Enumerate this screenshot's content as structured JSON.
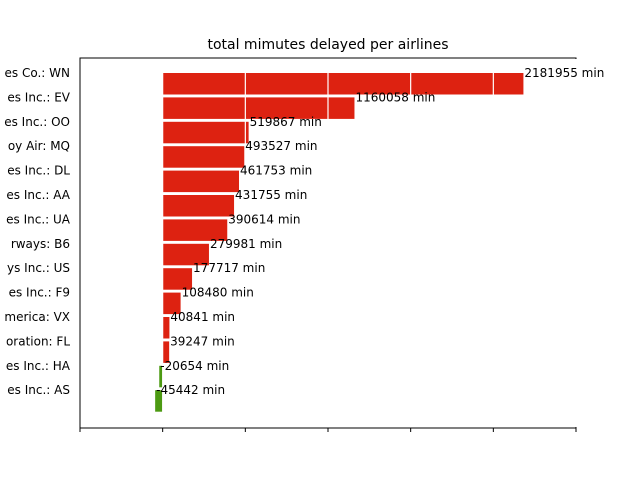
{
  "chart_data": {
    "type": "bar",
    "orientation": "horizontal",
    "title": "total mimutes delayed per airlines",
    "xlabel": "",
    "ylabel": "",
    "xlim": [
      -500000,
      2500000
    ],
    "grid": false,
    "categories": [
      "es Co.: WN",
      "es Inc.: EV",
      "es Inc.: OO",
      "oy Air: MQ",
      "es Inc.: DL",
      "es Inc.: AA",
      "es Inc.: UA",
      "rways: B6",
      "ys Inc.: US",
      "es Inc.: F9",
      "merica: VX",
      "oration: FL",
      "es Inc.: HA",
      "es Inc.: AS"
    ],
    "values": [
      2181955,
      1160058,
      519867,
      493527,
      461753,
      431755,
      390614,
      279981,
      177717,
      108480,
      40841,
      39247,
      -20654,
      -45442
    ],
    "data_labels": [
      "2181955 min",
      "1160058 min",
      "519867 min",
      "493527 min",
      "461753 min",
      "431755 min",
      "390614 min",
      "279981 min",
      "177717 min",
      "108480 min",
      "40841 min",
      "39247 min",
      "-20654 min",
      "-45442 min"
    ],
    "colors": {
      "positive": "#dd2211",
      "negative": "#4c9a12"
    }
  }
}
